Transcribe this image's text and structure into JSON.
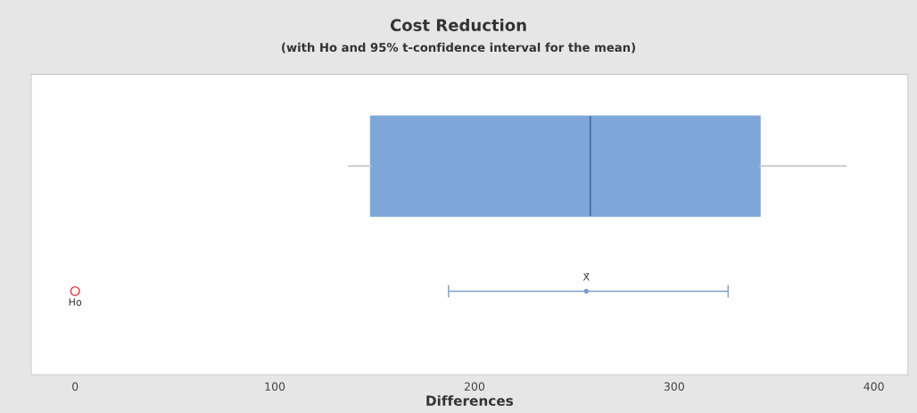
{
  "chart_data": {
    "type": "box",
    "title": "Cost Reduction",
    "subtitle": "(with Ho and 95% t-confidence interval for the mean)",
    "xlabel": "Differences",
    "orientation": "horizontal",
    "categories": [
      null,
      null
    ],
    "boxes": [
      {
        "low": 137,
        "q1": 148,
        "median": 258,
        "q3": 343,
        "high": 386
      },
      null
    ],
    "color": "#7fa6d8",
    "series": [
      {
        "type": "scatter",
        "color": "#7f9fc8",
        "values": [
          null,
          256
        ],
        "errors": [
          null,
          [
            187,
            327
          ]
        ],
        "marker": "circle"
      },
      {
        "type": "scatter",
        "color": "#e03030",
        "values": [
          null,
          0
        ],
        "marker": "circle"
      }
    ],
    "annotations": [
      "X̄",
      "Ho"
    ],
    "xlim": [
      -22,
      417
    ],
    "xticks": [
      0,
      100,
      200,
      300,
      400
    ],
    "grid": false
  }
}
